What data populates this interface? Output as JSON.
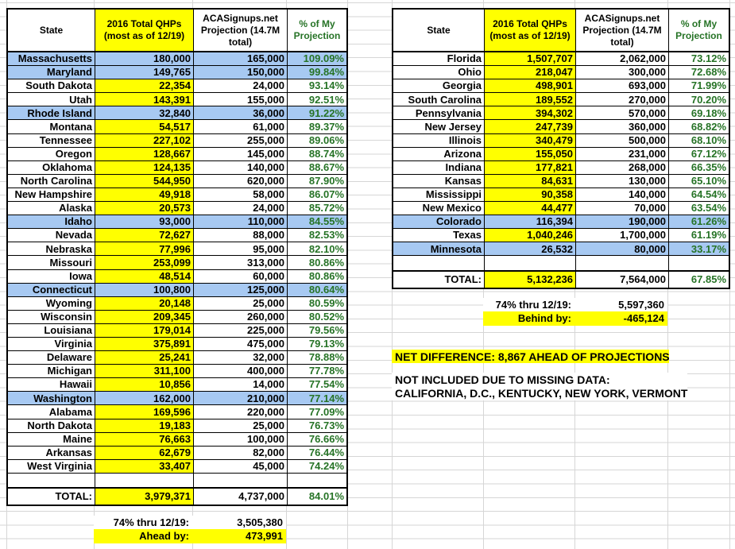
{
  "colors": {
    "highlight_yellow": "#ffff00",
    "state_exchange_blue": "#a7c9f2",
    "percent_green": "#267326"
  },
  "columns": {
    "state": "State",
    "qhp": "2016 Total QHPs (most as of 12/19)",
    "projection": "ACASignups.net Projection (14.7M total)",
    "pct": "% of My Projection"
  },
  "left_table": {
    "rows": [
      {
        "state": "Massachusetts",
        "qhp": "180,000",
        "projection": "165,000",
        "pct": "109.09%",
        "blue": true
      },
      {
        "state": "Maryland",
        "qhp": "149,765",
        "projection": "150,000",
        "pct": "99.84%",
        "blue": true
      },
      {
        "state": "South Dakota",
        "qhp": "22,354",
        "projection": "24,000",
        "pct": "93.14%",
        "blue": false
      },
      {
        "state": "Utah",
        "qhp": "143,391",
        "projection": "155,000",
        "pct": "92.51%",
        "blue": false
      },
      {
        "state": "Rhode Island",
        "qhp": "32,840",
        "projection": "36,000",
        "pct": "91.22%",
        "blue": true
      },
      {
        "state": "Montana",
        "qhp": "54,517",
        "projection": "61,000",
        "pct": "89.37%",
        "blue": false
      },
      {
        "state": "Tennessee",
        "qhp": "227,102",
        "projection": "255,000",
        "pct": "89.06%",
        "blue": false
      },
      {
        "state": "Oregon",
        "qhp": "128,667",
        "projection": "145,000",
        "pct": "88.74%",
        "blue": false
      },
      {
        "state": "Oklahoma",
        "qhp": "124,135",
        "projection": "140,000",
        "pct": "88.67%",
        "blue": false
      },
      {
        "state": "North Carolina",
        "qhp": "544,950",
        "projection": "620,000",
        "pct": "87.90%",
        "blue": false
      },
      {
        "state": "New Hampshire",
        "qhp": "49,918",
        "projection": "58,000",
        "pct": "86.07%",
        "blue": false
      },
      {
        "state": "Alaska",
        "qhp": "20,573",
        "projection": "24,000",
        "pct": "85.72%",
        "blue": false
      },
      {
        "state": "Idaho",
        "qhp": "93,000",
        "projection": "110,000",
        "pct": "84.55%",
        "blue": true
      },
      {
        "state": "Nevada",
        "qhp": "72,627",
        "projection": "88,000",
        "pct": "82.53%",
        "blue": false
      },
      {
        "state": "Nebraska",
        "qhp": "77,996",
        "projection": "95,000",
        "pct": "82.10%",
        "blue": false
      },
      {
        "state": "Missouri",
        "qhp": "253,099",
        "projection": "313,000",
        "pct": "80.86%",
        "blue": false
      },
      {
        "state": "Iowa",
        "qhp": "48,514",
        "projection": "60,000",
        "pct": "80.86%",
        "blue": false
      },
      {
        "state": "Connecticut",
        "qhp": "100,800",
        "projection": "125,000",
        "pct": "80.64%",
        "blue": true
      },
      {
        "state": "Wyoming",
        "qhp": "20,148",
        "projection": "25,000",
        "pct": "80.59%",
        "blue": false
      },
      {
        "state": "Wisconsin",
        "qhp": "209,345",
        "projection": "260,000",
        "pct": "80.52%",
        "blue": false
      },
      {
        "state": "Louisiana",
        "qhp": "179,014",
        "projection": "225,000",
        "pct": "79.56%",
        "blue": false
      },
      {
        "state": "Virginia",
        "qhp": "375,891",
        "projection": "475,000",
        "pct": "79.13%",
        "blue": false
      },
      {
        "state": "Delaware",
        "qhp": "25,241",
        "projection": "32,000",
        "pct": "78.88%",
        "blue": false
      },
      {
        "state": "Michigan",
        "qhp": "311,100",
        "projection": "400,000",
        "pct": "77.78%",
        "blue": false
      },
      {
        "state": "Hawaii",
        "qhp": "10,856",
        "projection": "14,000",
        "pct": "77.54%",
        "blue": false
      },
      {
        "state": "Washington",
        "qhp": "162,000",
        "projection": "210,000",
        "pct": "77.14%",
        "blue": true
      },
      {
        "state": "Alabama",
        "qhp": "169,596",
        "projection": "220,000",
        "pct": "77.09%",
        "blue": false
      },
      {
        "state": "North Dakota",
        "qhp": "19,183",
        "projection": "25,000",
        "pct": "76.73%",
        "blue": false
      },
      {
        "state": "Maine",
        "qhp": "76,663",
        "projection": "100,000",
        "pct": "76.66%",
        "blue": false
      },
      {
        "state": "Arkansas",
        "qhp": "62,679",
        "projection": "82,000",
        "pct": "76.44%",
        "blue": false
      },
      {
        "state": "West Virginia",
        "qhp": "33,407",
        "projection": "45,000",
        "pct": "74.24%",
        "blue": false
      }
    ],
    "total": {
      "label": "TOTAL:",
      "qhp": "3,979,371",
      "projection": "4,737,000",
      "pct": "84.01%"
    },
    "benchmark": {
      "label": "74% thru 12/19:",
      "value": "3,505,380"
    },
    "delta": {
      "label": "Ahead by:",
      "value": "473,991"
    }
  },
  "right_table": {
    "rows": [
      {
        "state": "Florida",
        "qhp": "1,507,707",
        "projection": "2,062,000",
        "pct": "73.12%",
        "blue": false
      },
      {
        "state": "Ohio",
        "qhp": "218,047",
        "projection": "300,000",
        "pct": "72.68%",
        "blue": false
      },
      {
        "state": "Georgia",
        "qhp": "498,901",
        "projection": "693,000",
        "pct": "71.99%",
        "blue": false
      },
      {
        "state": "South Carolina",
        "qhp": "189,552",
        "projection": "270,000",
        "pct": "70.20%",
        "blue": false
      },
      {
        "state": "Pennsylvania",
        "qhp": "394,302",
        "projection": "570,000",
        "pct": "69.18%",
        "blue": false
      },
      {
        "state": "New Jersey",
        "qhp": "247,739",
        "projection": "360,000",
        "pct": "68.82%",
        "blue": false
      },
      {
        "state": "Illinois",
        "qhp": "340,479",
        "projection": "500,000",
        "pct": "68.10%",
        "blue": false
      },
      {
        "state": "Arizona",
        "qhp": "155,050",
        "projection": "231,000",
        "pct": "67.12%",
        "blue": false
      },
      {
        "state": "Indiana",
        "qhp": "177,821",
        "projection": "268,000",
        "pct": "66.35%",
        "blue": false
      },
      {
        "state": "Kansas",
        "qhp": "84,631",
        "projection": "130,000",
        "pct": "65.10%",
        "blue": false
      },
      {
        "state": "Mississippi",
        "qhp": "90,358",
        "projection": "140,000",
        "pct": "64.54%",
        "blue": false
      },
      {
        "state": "New Mexico",
        "qhp": "44,477",
        "projection": "70,000",
        "pct": "63.54%",
        "blue": false
      },
      {
        "state": "Colorado",
        "qhp": "116,394",
        "projection": "190,000",
        "pct": "61.26%",
        "blue": true
      },
      {
        "state": "Texas",
        "qhp": "1,040,246",
        "projection": "1,700,000",
        "pct": "61.19%",
        "blue": false
      },
      {
        "state": "Minnesota",
        "qhp": "26,532",
        "projection": "80,000",
        "pct": "33.17%",
        "blue": true
      }
    ],
    "total": {
      "label": "TOTAL:",
      "qhp": "5,132,236",
      "projection": "7,564,000",
      "pct": "67.85%"
    },
    "benchmark": {
      "label": "74% thru 12/19:",
      "value": "5,597,360"
    },
    "delta": {
      "label": "Behind by:",
      "value": "-465,124"
    }
  },
  "annotations": {
    "net_difference": "NET DIFFERENCE: 8,867 AHEAD OF PROJECTIONS",
    "missing_title": "NOT INCLUDED DUE TO MISSING DATA:",
    "missing_states": "CALIFORNIA, D.C., KENTUCKY, NEW YORK, VERMONT"
  }
}
